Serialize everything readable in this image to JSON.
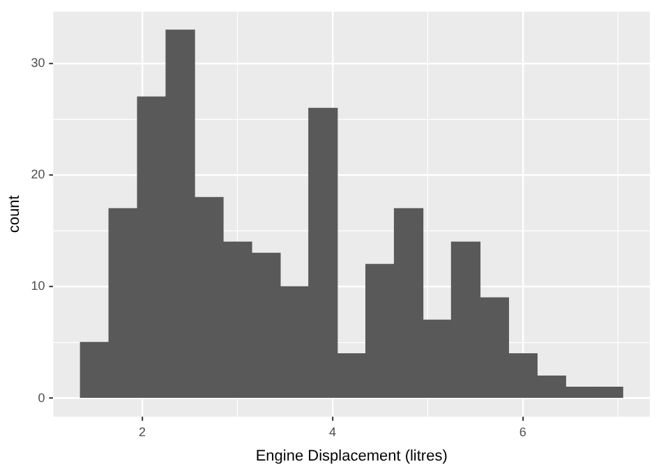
{
  "chart_data": {
    "type": "histogram",
    "xlabel": "Engine Displacement (litres)",
    "ylabel": "count",
    "bins": [
      1.35,
      1.65,
      1.95,
      2.25,
      2.55,
      2.85,
      3.15,
      3.45,
      3.75,
      4.05,
      4.35,
      4.65,
      4.95,
      5.25,
      5.55,
      5.85,
      6.15,
      6.45,
      6.75,
      7.05
    ],
    "values": [
      5,
      17,
      27,
      33,
      18,
      14,
      13,
      10,
      26,
      4,
      12,
      17,
      7,
      14,
      9,
      4,
      2,
      1,
      1
    ],
    "color": "#595959",
    "xlim": [
      1.065,
      7.335
    ],
    "xticks": [
      2,
      4,
      6
    ],
    "ylim": [
      -1.65,
      34.65
    ],
    "yticks": [
      0,
      10,
      20,
      30
    ],
    "grid": true,
    "legend": false
  }
}
